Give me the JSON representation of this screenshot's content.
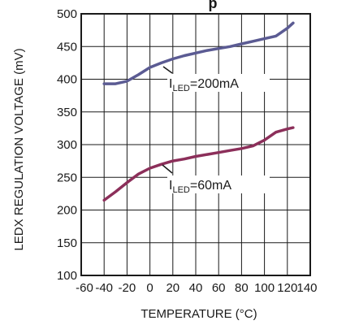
{
  "chart_data": {
    "type": "line",
    "title_fragment": "p",
    "xlabel": "TEMPERATURE (°C)",
    "ylabel": "LEDX REGULATION VOLTAGE (mV)",
    "xlim": [
      -60,
      140
    ],
    "ylim": [
      100,
      500
    ],
    "x_ticks": [
      -60,
      -40,
      -20,
      0,
      20,
      40,
      60,
      80,
      100,
      120,
      140
    ],
    "x_tick_labels": [
      "-60",
      "-40",
      "-20",
      "0",
      "20",
      "40",
      "60",
      "80",
      "100",
      "120",
      "140"
    ],
    "y_ticks": [
      100,
      150,
      200,
      250,
      300,
      350,
      400,
      450,
      500
    ],
    "y_tick_labels": [
      "100",
      "150",
      "200",
      "250",
      "300",
      "350",
      "400",
      "450",
      "500"
    ],
    "grid": true,
    "series": [
      {
        "color": "#5b5b93",
        "x": [
          -40,
          -30,
          -20,
          -10,
          0,
          10,
          20,
          30,
          40,
          50,
          60,
          70,
          80,
          90,
          100,
          110,
          120,
          125
        ],
        "y": [
          393,
          393,
          397,
          407,
          418,
          425,
          431,
          436,
          440,
          444,
          447,
          450,
          454,
          458,
          462,
          466,
          478,
          486
        ]
      },
      {
        "color": "#8c2f5a",
        "x": [
          -40,
          -30,
          -20,
          -10,
          0,
          10,
          20,
          30,
          40,
          50,
          60,
          70,
          80,
          90,
          100,
          110,
          120,
          125
        ],
        "y": [
          215,
          228,
          242,
          255,
          264,
          270,
          275,
          278,
          282,
          285,
          288,
          291,
          294,
          298,
          307,
          319,
          324,
          326
        ]
      }
    ],
    "annotations": [
      {
        "main": "I",
        "sub": "LED",
        "rest": "=200mA",
        "series_index": 0
      },
      {
        "main": "I",
        "sub": "LED",
        "rest": "=60mA",
        "series_index": 1
      }
    ]
  }
}
